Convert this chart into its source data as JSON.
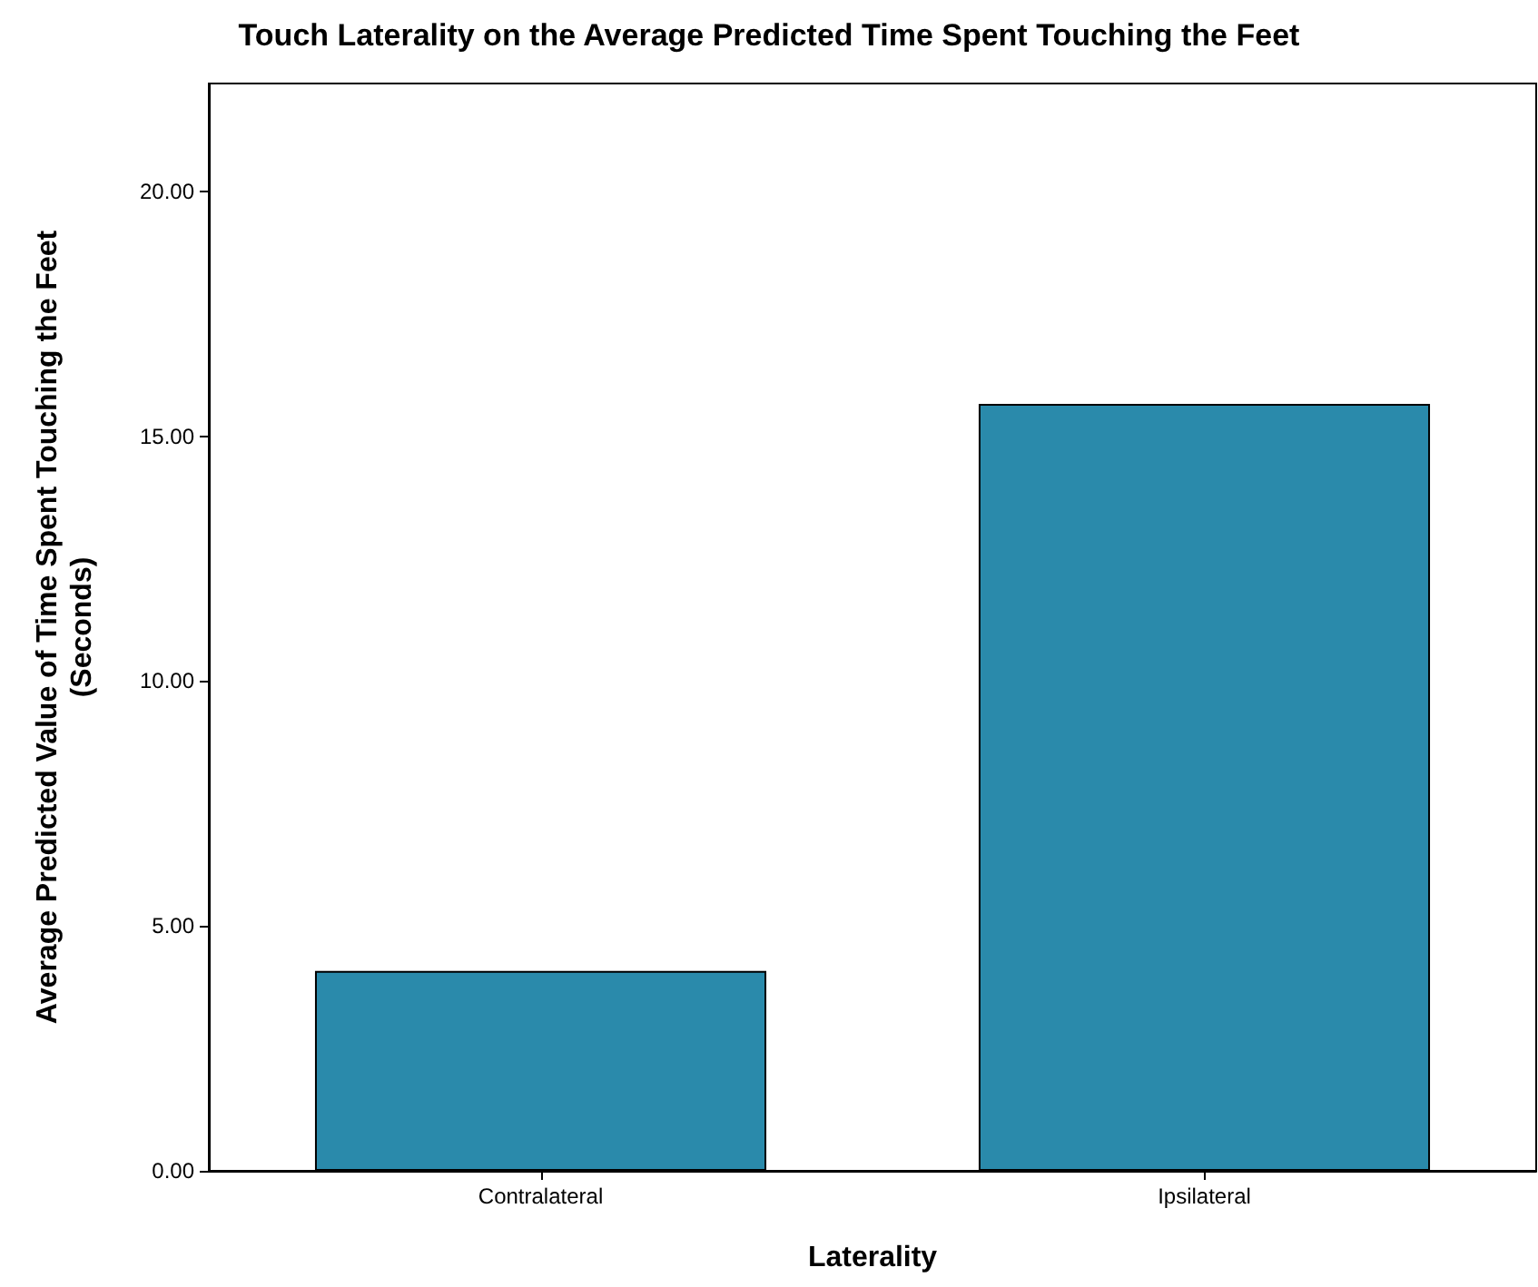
{
  "chart_data": {
    "type": "bar",
    "title": "Touch Laterality on the Average Predicted Time Spent Touching the Feet",
    "xlabel": "Laterality",
    "ylabel": "Average Predicted Value of Time Spent Touching the Feet\n(Seconds)",
    "categories": [
      "Contralateral",
      "Ipsilateral"
    ],
    "values": [
      4.08,
      15.66
    ],
    "color": "#2a8aab",
    "ylim": [
      0,
      22.2
    ],
    "yticks": [
      {
        "value": 0,
        "label": "0.00"
      },
      {
        "value": 5,
        "label": "5.00"
      },
      {
        "value": 10,
        "label": "10.00"
      },
      {
        "value": 15,
        "label": "15.00"
      },
      {
        "value": 20,
        "label": "20.00"
      }
    ],
    "grid": false
  }
}
